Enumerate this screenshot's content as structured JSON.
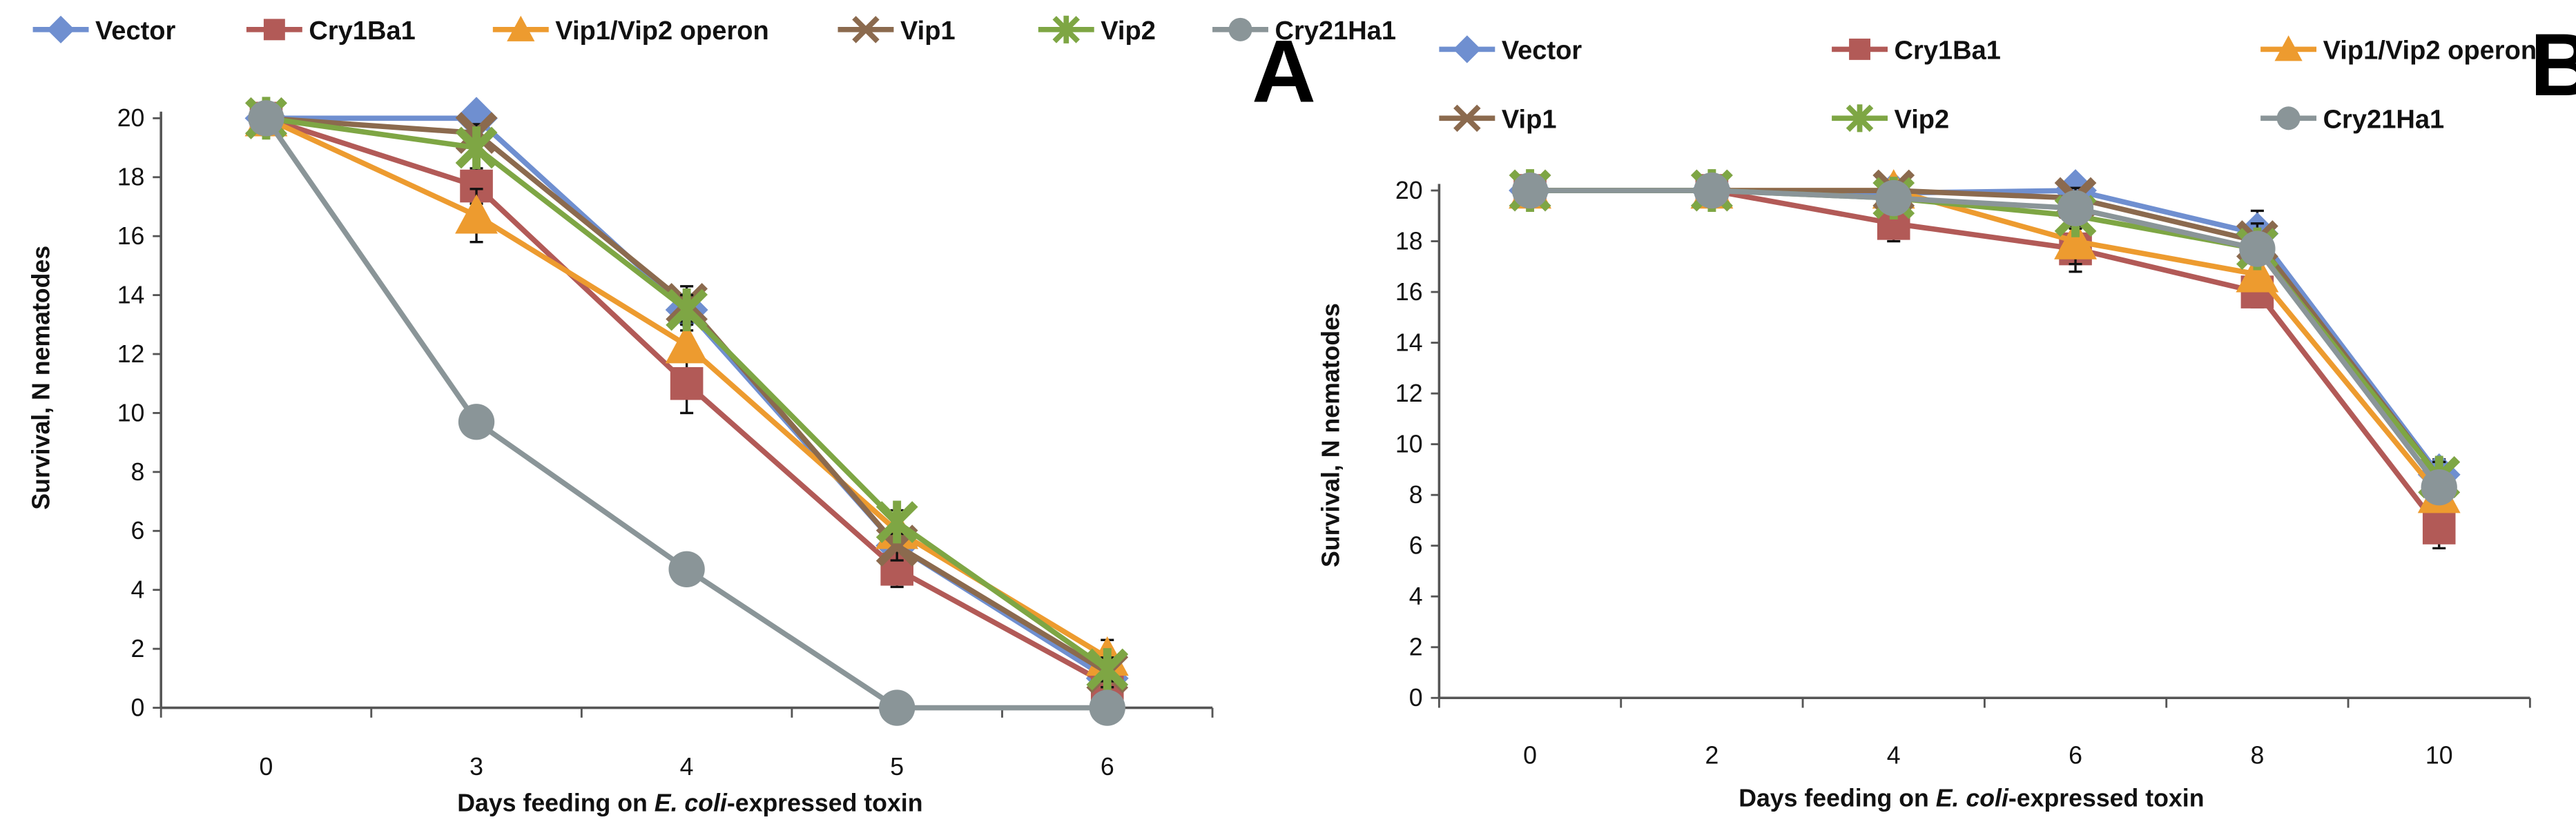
{
  "chart_data": [
    {
      "type": "line",
      "panel_label": "A",
      "title": "",
      "xlabel_parts": [
        "Days feeding on ",
        "E. coli",
        "-expressed toxin"
      ],
      "ylabel": "Survival, N nematodes",
      "categories": [
        "0",
        "3",
        "4",
        "5",
        "6"
      ],
      "ylim": [
        0,
        20
      ],
      "yticks": [
        "0",
        "2",
        "4",
        "6",
        "8",
        "10",
        "12",
        "14",
        "16",
        "18",
        "20"
      ],
      "legend_position": "top",
      "series": [
        {
          "name": "Vector",
          "color": "#6f8fd0",
          "marker": "diamond",
          "values": [
            20,
            20,
            13.5,
            5.5,
            1.0
          ],
          "errors": [
            0,
            0.25,
            0.4,
            0.4,
            0.3
          ]
        },
        {
          "name": "Cry1Ba1",
          "color": "#b25a57",
          "marker": "square",
          "values": [
            20,
            17.7,
            11.0,
            4.7,
            0.8
          ],
          "errors": [
            0,
            0.6,
            1.0,
            0.6,
            0.3
          ]
        },
        {
          "name": "Vip1/Vip2 operon",
          "color": "#ed9b2f",
          "marker": "triangle",
          "values": [
            20,
            16.7,
            12.3,
            6.0,
            1.7
          ],
          "errors": [
            0,
            0.9,
            0.5,
            0.5,
            0.6
          ]
        },
        {
          "name": "Vip1",
          "color": "#8b6a4e",
          "marker": "x",
          "values": [
            20,
            19.5,
            13.7,
            5.5,
            1.2
          ],
          "errors": [
            0,
            0.3,
            0.6,
            0.5,
            0.5
          ]
        },
        {
          "name": "Vip2",
          "color": "#7ea644",
          "marker": "asterisk",
          "values": [
            20,
            19.0,
            13.5,
            6.3,
            1.3
          ],
          "errors": [
            0,
            0.3,
            0.5,
            0.4,
            0.4
          ]
        },
        {
          "name": "Cry21Ha1",
          "color": "#8a9598",
          "marker": "circle",
          "values": [
            20,
            9.7,
            4.7,
            0.0,
            0.0
          ],
          "errors": [
            0,
            0.3,
            0.3,
            0,
            0
          ]
        }
      ]
    },
    {
      "type": "line",
      "panel_label": "B",
      "title": "",
      "xlabel_parts": [
        "Days feeding on ",
        "E. coli",
        "-expressed toxin"
      ],
      "ylabel": "Survival, N nematodes",
      "categories": [
        "0",
        "2",
        "4",
        "6",
        "8",
        "10"
      ],
      "ylim": [
        0,
        20
      ],
      "yticks": [
        "0",
        "2",
        "4",
        "6",
        "8",
        "10",
        "12",
        "14",
        "16",
        "18",
        "20"
      ],
      "legend_position": "top",
      "series": [
        {
          "name": "Vector",
          "color": "#6f8fd0",
          "marker": "diamond",
          "values": [
            20,
            20,
            19.9,
            20.0,
            18.3,
            8.8
          ],
          "errors": [
            0,
            0,
            0.2,
            0.3,
            0.9,
            0.6
          ]
        },
        {
          "name": "Cry1Ba1",
          "color": "#b25a57",
          "marker": "square",
          "values": [
            20,
            20,
            18.7,
            17.7,
            16.0,
            6.7
          ],
          "errors": [
            0,
            0,
            0.7,
            0.9,
            0.6,
            0.8
          ]
        },
        {
          "name": "Vip1/Vip2 operon",
          "color": "#ed9b2f",
          "marker": "triangle",
          "values": [
            20,
            20,
            20.0,
            18.0,
            16.7,
            8.0
          ],
          "errors": [
            0,
            0,
            0.2,
            0.9,
            0.6,
            0.6
          ]
        },
        {
          "name": "Vip1",
          "color": "#8b6a4e",
          "marker": "x",
          "values": [
            20,
            20,
            20.0,
            19.7,
            18.0,
            8.7
          ],
          "errors": [
            0,
            0,
            0.2,
            0.4,
            0.7,
            0.6
          ]
        },
        {
          "name": "Vip2",
          "color": "#7ea644",
          "marker": "asterisk",
          "values": [
            20,
            20,
            19.7,
            19.0,
            17.7,
            8.7
          ],
          "errors": [
            0,
            0,
            0.3,
            0.5,
            0.6,
            0.6
          ]
        },
        {
          "name": "Cry21Ha1",
          "color": "#8a9598",
          "marker": "circle",
          "values": [
            20,
            20,
            19.7,
            19.3,
            17.7,
            8.3
          ],
          "errors": [
            0,
            0,
            0.3,
            0.5,
            0.6,
            0.6
          ]
        }
      ]
    }
  ]
}
